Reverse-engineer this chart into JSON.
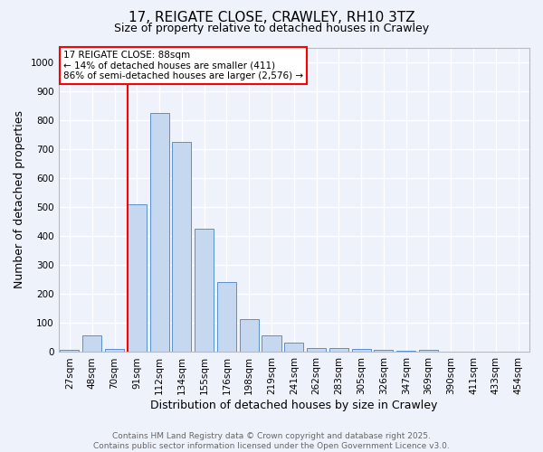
{
  "title1": "17, REIGATE CLOSE, CRAWLEY, RH10 3TZ",
  "title2": "Size of property relative to detached houses in Crawley",
  "xlabel": "Distribution of detached houses by size in Crawley",
  "ylabel": "Number of detached properties",
  "bar_labels": [
    "27sqm",
    "48sqm",
    "70sqm",
    "91sqm",
    "112sqm",
    "134sqm",
    "155sqm",
    "176sqm",
    "198sqm",
    "219sqm",
    "241sqm",
    "262sqm",
    "283sqm",
    "305sqm",
    "326sqm",
    "347sqm",
    "369sqm",
    "390sqm",
    "411sqm",
    "433sqm",
    "454sqm"
  ],
  "bar_values": [
    8,
    57,
    10,
    510,
    825,
    725,
    425,
    240,
    115,
    57,
    32,
    13,
    13,
    10,
    7,
    3,
    7,
    0,
    0,
    0,
    0
  ],
  "bar_color": "#c5d8f0",
  "bar_edge_color": "#5b8fce",
  "ylim": [
    0,
    1050
  ],
  "yticks": [
    0,
    100,
    200,
    300,
    400,
    500,
    600,
    700,
    800,
    900,
    1000
  ],
  "property_line_color": "red",
  "property_line_x": 3,
  "annotation_text": "17 REIGATE CLOSE: 88sqm\n← 14% of detached houses are smaller (411)\n86% of semi-detached houses are larger (2,576) →",
  "annotation_box_color": "white",
  "annotation_box_edge": "red",
  "footer1": "Contains HM Land Registry data © Crown copyright and database right 2025.",
  "footer2": "Contains public sector information licensed under the Open Government Licence v3.0.",
  "bg_color": "#eef2fb",
  "grid_color": "white",
  "title1_fontsize": 11,
  "title2_fontsize": 9,
  "xlabel_fontsize": 9,
  "ylabel_fontsize": 9,
  "tick_fontsize": 7.5,
  "annotation_fontsize": 7.5,
  "footer_fontsize": 6.5
}
